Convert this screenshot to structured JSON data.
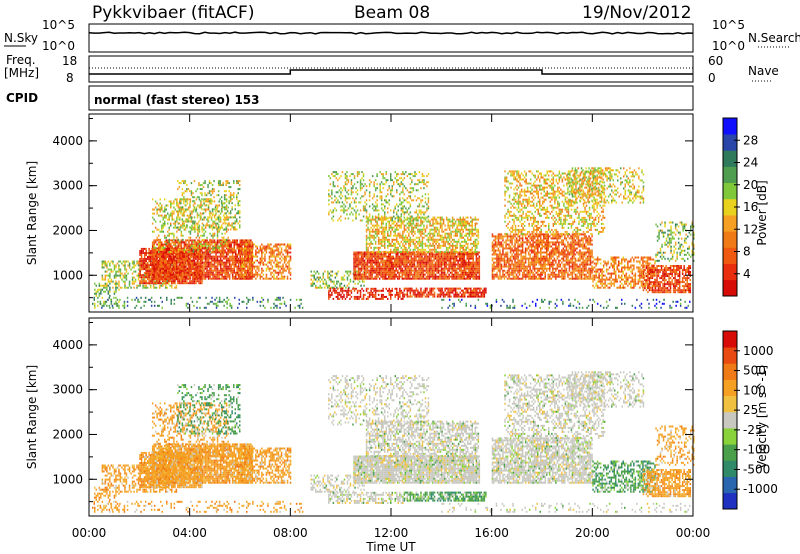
{
  "header": {
    "station": "Pykkvibaer (fitACF)",
    "beam": "Beam 08",
    "date": "19/Nov/2012"
  },
  "nsky_panel": {
    "left_label": "N.Sky",
    "right_label": "N.Search",
    "tick_top": "10^5",
    "tick_bottom": "10^0"
  },
  "freq_panel": {
    "left_label_line1": "Freq.",
    "left_label_line2": "[MHz]",
    "right_label": "Nave",
    "left_ticks": [
      "18",
      "8"
    ],
    "right_ticks": [
      "60",
      "0"
    ]
  },
  "cpid_panel": {
    "label": "CPID",
    "text": "normal (fast stereo) 153"
  },
  "chart_data": [
    {
      "type": "heatmap",
      "title": "Power",
      "ylabel": "Slant Range [km]",
      "xlabel": "",
      "ylim": [
        180,
        4600
      ],
      "xlim": [
        0,
        24
      ],
      "yticks": [
        "1000",
        "2000",
        "3000",
        "4000"
      ],
      "colorbar_label": "Power [dB]",
      "colorbar_ticks": [
        "4",
        "8",
        "12",
        "16",
        "20",
        "24",
        "28"
      ],
      "colorbar_colors": [
        "#1010ff",
        "#2a46a8",
        "#2f7a5a",
        "#4f9e50",
        "#7ec83a",
        "#e8d21e",
        "#f5a023",
        "#f07a16",
        "#f05a10",
        "#e82e0c",
        "#d80c06"
      ]
    },
    {
      "type": "heatmap",
      "title": "Velocity",
      "ylabel": "Slant Range [km]",
      "xlabel": "Time UT",
      "ylim": [
        180,
        4600
      ],
      "xlim": [
        0,
        24
      ],
      "yticks": [
        "1000",
        "2000",
        "3000",
        "4000"
      ],
      "xticks": [
        "00:00",
        "04:00",
        "08:00",
        "12:00",
        "16:00",
        "20:00",
        "00:00"
      ],
      "colorbar_label": "Velocity [m s^-1]",
      "colorbar_ticks": [
        "1000",
        "500",
        "100",
        "25",
        "-25",
        "-100",
        "-500",
        "-1000"
      ],
      "colorbar_colors": [
        "#2030c0",
        "#2a66b0",
        "#2f8a6a",
        "#4aa04a",
        "#8ad23a",
        "#c8c8c0",
        "#f0c040",
        "#f5a023",
        "#f07a16",
        "#e84a10",
        "#d80c06"
      ]
    }
  ]
}
